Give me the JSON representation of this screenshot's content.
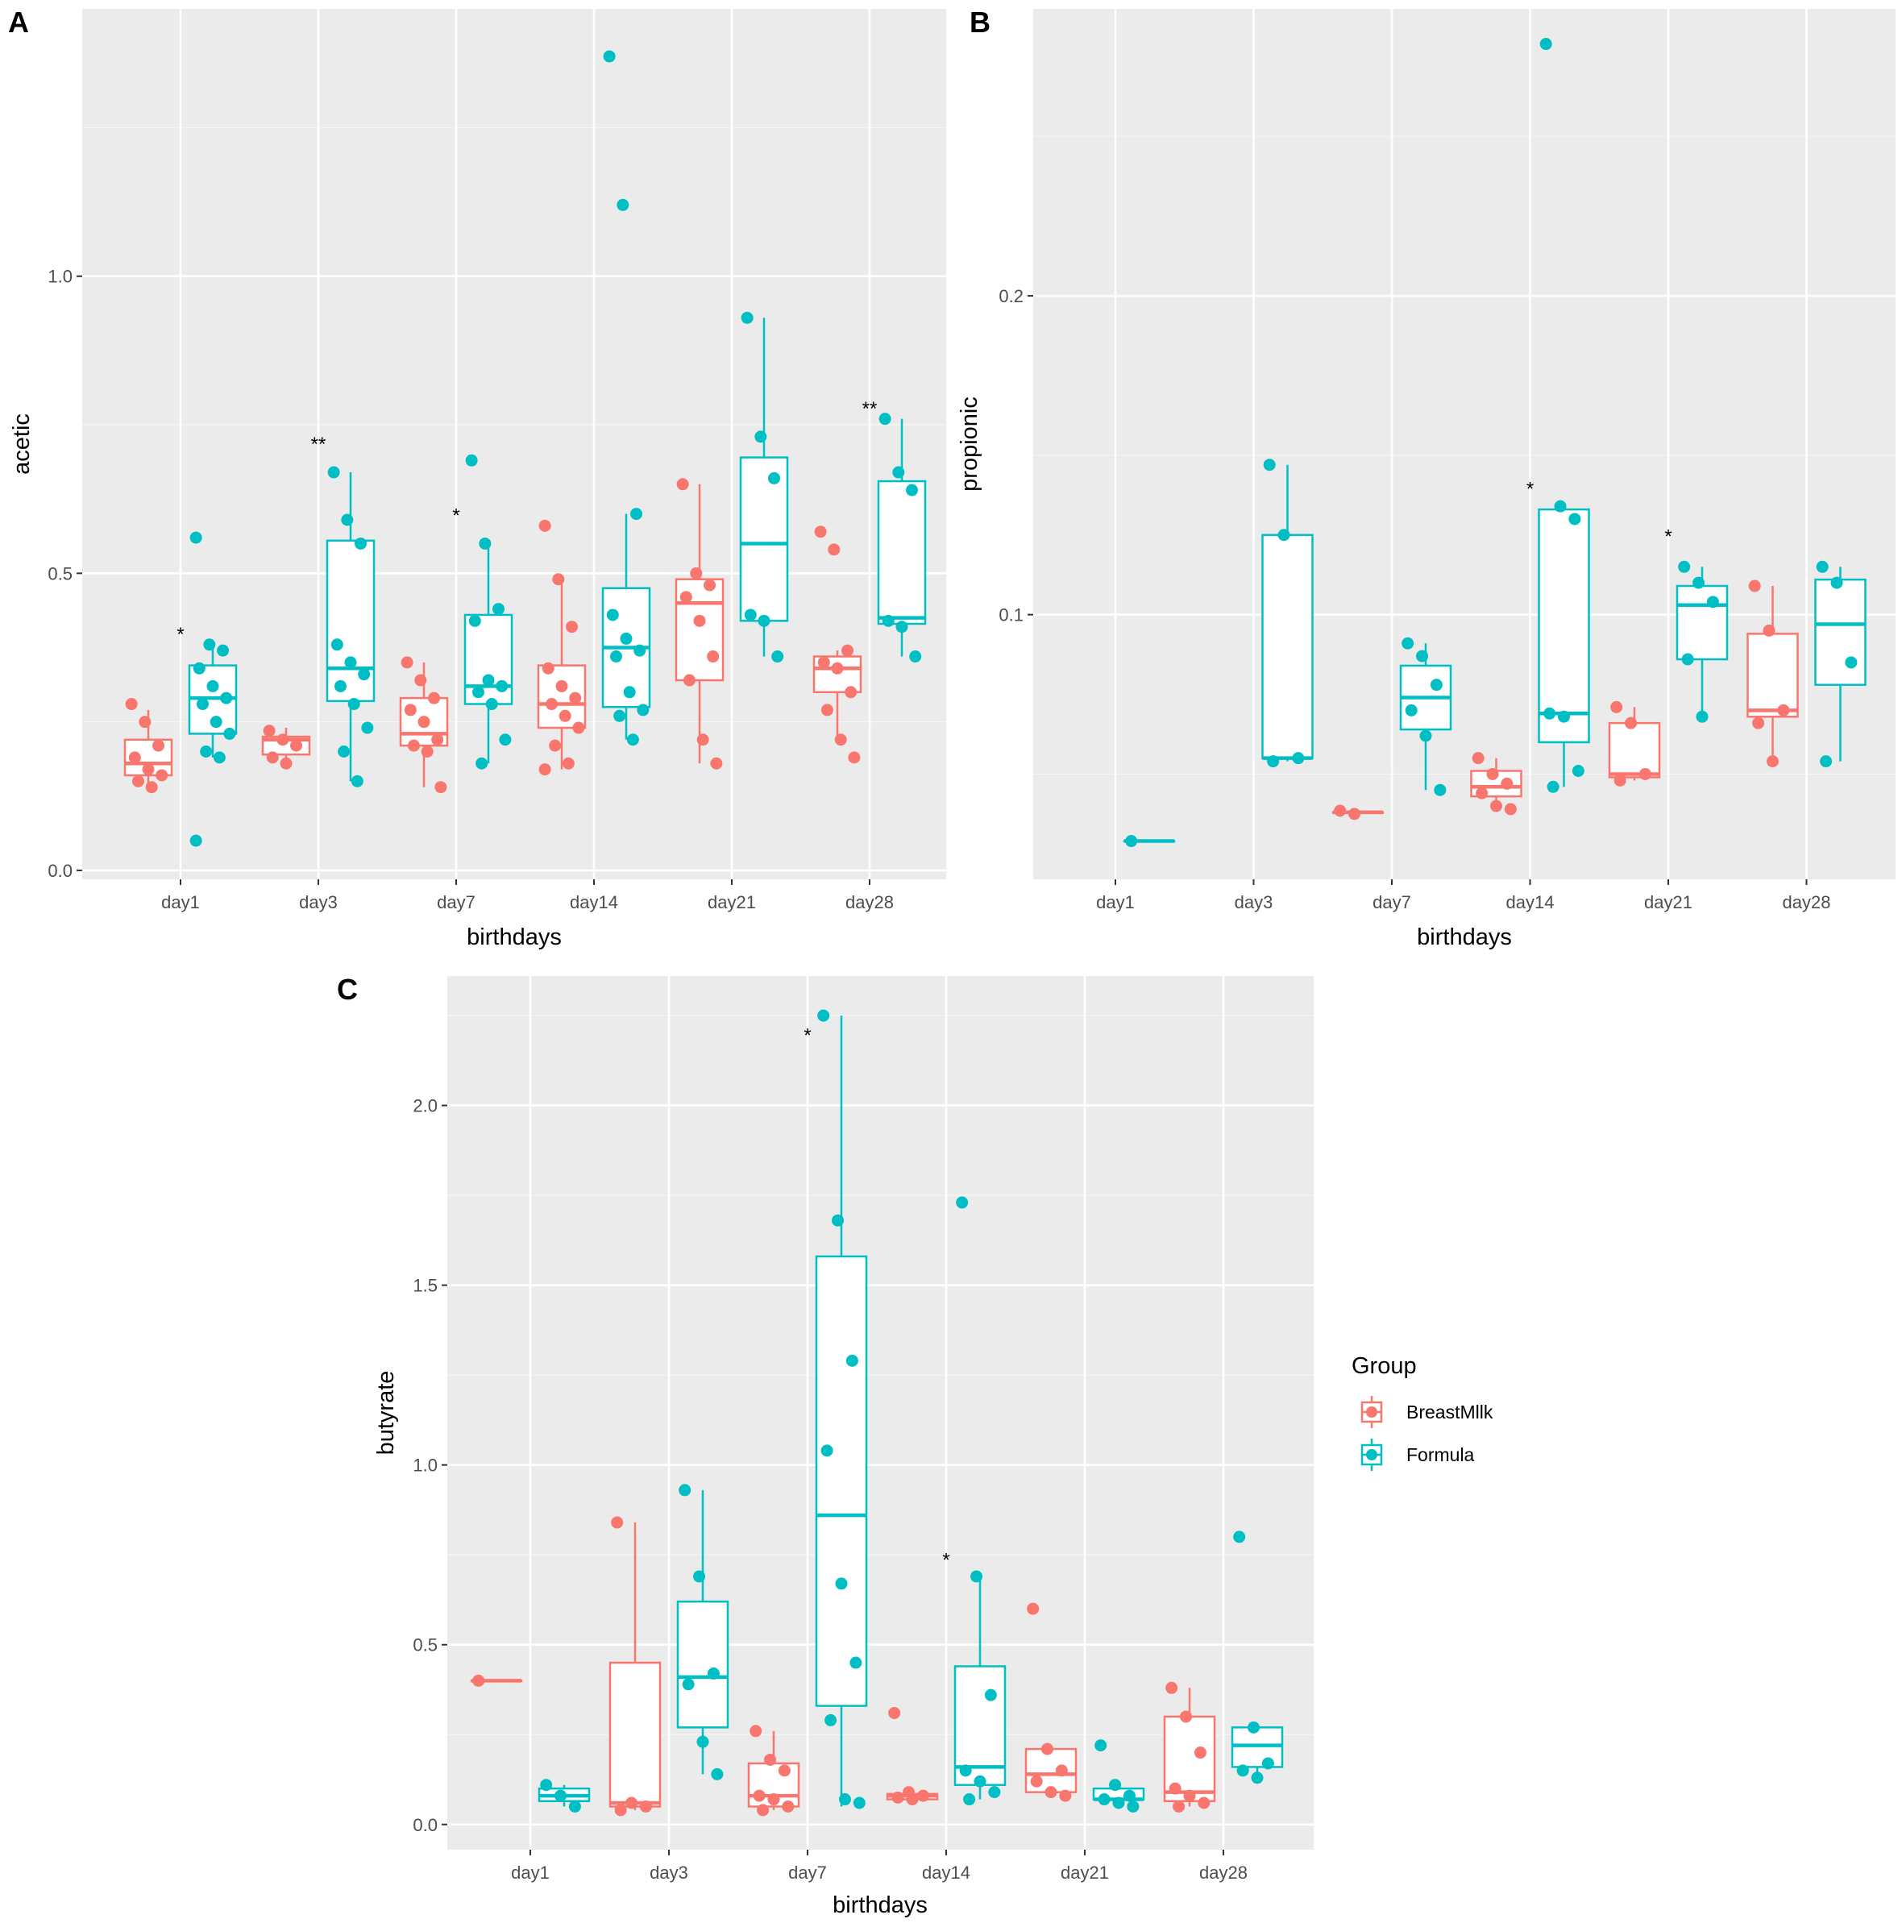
{
  "colors": {
    "BreastMilk": "#F8766D",
    "Formula": "#00BFC4"
  },
  "legend": {
    "title": "Group",
    "items": [
      {
        "label": "BreastMllk",
        "group": "BreastMilk"
      },
      {
        "label": "Formula",
        "group": "Formula"
      }
    ]
  },
  "chart_data": [
    {
      "panel": "A",
      "type": "box",
      "xlabel": "birthdays",
      "ylabel": "acetic",
      "categories": [
        "day1",
        "day3",
        "day7",
        "day14",
        "day21",
        "day28"
      ],
      "ylim": [
        -0.015,
        1.45
      ],
      "yticks": [
        0.0,
        0.5,
        1.0
      ],
      "ytick_labels": [
        "0.0",
        "0.5",
        "1.0"
      ],
      "series": [
        {
          "group": "BreastMilk",
          "boxes": [
            {
              "cat": "day1",
              "lo": 0.14,
              "q1": 0.16,
              "med": 0.18,
              "q3": 0.22,
              "hi": 0.27,
              "points": [
                0.28,
                0.25,
                0.21,
                0.19,
                0.17,
                0.16,
                0.15,
                0.14
              ]
            },
            {
              "cat": "day3",
              "lo": 0.18,
              "q1": 0.195,
              "med": 0.22,
              "q3": 0.225,
              "hi": 0.24,
              "points": [
                0.235,
                0.22,
                0.21,
                0.19,
                0.18
              ]
            },
            {
              "cat": "day7",
              "lo": 0.14,
              "q1": 0.21,
              "med": 0.23,
              "q3": 0.29,
              "hi": 0.35,
              "points": [
                0.35,
                0.32,
                0.29,
                0.27,
                0.25,
                0.22,
                0.21,
                0.2,
                0.14
              ]
            },
            {
              "cat": "day14",
              "lo": 0.17,
              "q1": 0.24,
              "med": 0.28,
              "q3": 0.345,
              "hi": 0.49,
              "points": [
                0.58,
                0.49,
                0.41,
                0.34,
                0.31,
                0.29,
                0.28,
                0.26,
                0.24,
                0.21,
                0.18,
                0.17
              ]
            },
            {
              "cat": "day21",
              "lo": 0.18,
              "q1": 0.32,
              "med": 0.45,
              "q3": 0.49,
              "hi": 0.65,
              "points": [
                0.65,
                0.5,
                0.48,
                0.46,
                0.42,
                0.36,
                0.32,
                0.22,
                0.18
              ]
            },
            {
              "cat": "day28",
              "lo": 0.22,
              "q1": 0.3,
              "med": 0.34,
              "q3": 0.36,
              "hi": 0.37,
              "points": [
                0.57,
                0.54,
                0.37,
                0.35,
                0.34,
                0.3,
                0.27,
                0.22,
                0.19
              ]
            }
          ]
        },
        {
          "group": "Formula",
          "boxes": [
            {
              "cat": "day1",
              "lo": 0.19,
              "q1": 0.23,
              "med": 0.29,
              "q3": 0.345,
              "hi": 0.38,
              "points": [
                0.56,
                0.38,
                0.37,
                0.34,
                0.31,
                0.29,
                0.28,
                0.25,
                0.23,
                0.2,
                0.19,
                0.05
              ]
            },
            {
              "cat": "day3",
              "lo": 0.15,
              "q1": 0.285,
              "med": 0.34,
              "q3": 0.555,
              "hi": 0.67,
              "points": [
                0.67,
                0.59,
                0.55,
                0.38,
                0.35,
                0.33,
                0.31,
                0.28,
                0.24,
                0.2,
                0.15
              ]
            },
            {
              "cat": "day7",
              "lo": 0.18,
              "q1": 0.28,
              "med": 0.31,
              "q3": 0.43,
              "hi": 0.55,
              "points": [
                0.69,
                0.55,
                0.44,
                0.42,
                0.32,
                0.31,
                0.3,
                0.28,
                0.22,
                0.18
              ]
            },
            {
              "cat": "day14",
              "lo": 0.22,
              "q1": 0.275,
              "med": 0.375,
              "q3": 0.475,
              "hi": 0.6,
              "points": [
                1.37,
                1.12,
                0.6,
                0.43,
                0.39,
                0.37,
                0.36,
                0.3,
                0.27,
                0.26,
                0.22
              ]
            },
            {
              "cat": "day21",
              "lo": 0.36,
              "q1": 0.42,
              "med": 0.55,
              "q3": 0.695,
              "hi": 0.93,
              "points": [
                0.93,
                0.73,
                0.66,
                0.43,
                0.42,
                0.36
              ]
            },
            {
              "cat": "day28",
              "lo": 0.36,
              "q1": 0.415,
              "med": 0.425,
              "q3": 0.655,
              "hi": 0.76,
              "points": [
                0.76,
                0.67,
                0.64,
                0.42,
                0.41,
                0.36
              ]
            }
          ]
        }
      ],
      "annotations": [
        {
          "cat": "day1",
          "text": "*",
          "y": 0.4
        },
        {
          "cat": "day3",
          "text": "**",
          "y": 0.72
        },
        {
          "cat": "day7",
          "text": "*",
          "y": 0.6
        },
        {
          "cat": "day28",
          "text": "**",
          "y": 0.78
        }
      ]
    },
    {
      "panel": "B",
      "type": "box",
      "xlabel": "birthdays",
      "ylabel": "propionic",
      "categories": [
        "day1",
        "day3",
        "day7",
        "day14",
        "day21",
        "day28"
      ],
      "ylim": [
        0.017,
        0.29
      ],
      "yticks": [
        0.1,
        0.2
      ],
      "ytick_labels": [
        "0.1",
        "0.2"
      ],
      "series": [
        {
          "group": "BreastMilk",
          "boxes": [
            {
              "cat": "day7",
              "lo": 0.038,
              "q1": 0.038,
              "med": 0.038,
              "q3": 0.038,
              "hi": 0.038,
              "points": [
                0.0385,
                0.0375
              ]
            },
            {
              "cat": "day14",
              "lo": 0.039,
              "q1": 0.043,
              "med": 0.046,
              "q3": 0.051,
              "hi": 0.055,
              "points": [
                0.055,
                0.05,
                0.047,
                0.044,
                0.04,
                0.039
              ]
            },
            {
              "cat": "day21",
              "lo": 0.048,
              "q1": 0.049,
              "med": 0.05,
              "q3": 0.066,
              "hi": 0.071,
              "points": [
                0.071,
                0.066,
                0.05,
                0.048
              ]
            },
            {
              "cat": "day28",
              "lo": 0.054,
              "q1": 0.068,
              "med": 0.07,
              "q3": 0.094,
              "hi": 0.109,
              "points": [
                0.109,
                0.095,
                0.07,
                0.066,
                0.054
              ]
            }
          ]
        },
        {
          "group": "Formula",
          "boxes": [
            {
              "cat": "day1",
              "lo": 0.029,
              "q1": 0.029,
              "med": 0.029,
              "q3": 0.029,
              "hi": 0.029,
              "points": [
                0.029
              ]
            },
            {
              "cat": "day3",
              "lo": 0.054,
              "q1": 0.055,
              "med": 0.055,
              "q3": 0.125,
              "hi": 0.147,
              "points": [
                0.147,
                0.125,
                0.055,
                0.054
              ]
            },
            {
              "cat": "day7",
              "lo": 0.045,
              "q1": 0.064,
              "med": 0.074,
              "q3": 0.084,
              "hi": 0.091,
              "points": [
                0.091,
                0.087,
                0.078,
                0.07,
                0.062,
                0.045
              ]
            },
            {
              "cat": "day14",
              "lo": 0.046,
              "q1": 0.06,
              "med": 0.069,
              "q3": 0.133,
              "hi": 0.134,
              "points": [
                0.279,
                0.134,
                0.13,
                0.069,
                0.068,
                0.051,
                0.046
              ]
            },
            {
              "cat": "day21",
              "lo": 0.068,
              "q1": 0.086,
              "med": 0.103,
              "q3": 0.109,
              "hi": 0.115,
              "points": [
                0.115,
                0.11,
                0.104,
                0.086,
                0.068
              ]
            },
            {
              "cat": "day28",
              "lo": 0.054,
              "q1": 0.078,
              "med": 0.097,
              "q3": 0.111,
              "hi": 0.115,
              "points": [
                0.115,
                0.11,
                0.085,
                0.054
              ]
            }
          ]
        }
      ],
      "annotations": [
        {
          "cat": "day14",
          "text": "*",
          "y": 0.14
        },
        {
          "cat": "day21",
          "text": "*",
          "y": 0.125
        }
      ]
    },
    {
      "panel": "C",
      "type": "box",
      "xlabel": "birthdays",
      "ylabel": "butyrate",
      "categories": [
        "day1",
        "day3",
        "day7",
        "day14",
        "day21",
        "day28"
      ],
      "ylim": [
        -0.07,
        2.36
      ],
      "yticks": [
        0.0,
        0.5,
        1.0,
        1.5,
        2.0
      ],
      "ytick_labels": [
        "0.0",
        "0.5",
        "1.0",
        "1.5",
        "2.0"
      ],
      "series": [
        {
          "group": "BreastMilk",
          "boxes": [
            {
              "cat": "day1",
              "lo": 0.4,
              "q1": 0.4,
              "med": 0.4,
              "q3": 0.4,
              "hi": 0.4,
              "points": [
                0.4
              ]
            },
            {
              "cat": "day3",
              "lo": 0.04,
              "q1": 0.05,
              "med": 0.06,
              "q3": 0.45,
              "hi": 0.84,
              "points": [
                0.84,
                0.06,
                0.05,
                0.04
              ]
            },
            {
              "cat": "day7",
              "lo": 0.04,
              "q1": 0.05,
              "med": 0.08,
              "q3": 0.17,
              "hi": 0.26,
              "points": [
                0.26,
                0.18,
                0.15,
                0.08,
                0.07,
                0.05,
                0.04
              ]
            },
            {
              "cat": "day14",
              "lo": 0.07,
              "q1": 0.07,
              "med": 0.08,
              "q3": 0.085,
              "hi": 0.09,
              "points": [
                0.31,
                0.09,
                0.08,
                0.075,
                0.07
              ]
            },
            {
              "cat": "day21",
              "lo": 0.08,
              "q1": 0.09,
              "med": 0.14,
              "q3": 0.21,
              "hi": 0.21,
              "points": [
                0.6,
                0.21,
                0.15,
                0.12,
                0.09,
                0.08
              ]
            },
            {
              "cat": "day28",
              "lo": 0.05,
              "q1": 0.065,
              "med": 0.09,
              "q3": 0.3,
              "hi": 0.38,
              "points": [
                0.38,
                0.3,
                0.2,
                0.1,
                0.08,
                0.06,
                0.05
              ]
            }
          ]
        },
        {
          "group": "Formula",
          "boxes": [
            {
              "cat": "day1",
              "lo": 0.05,
              "q1": 0.065,
              "med": 0.08,
              "q3": 0.1,
              "hi": 0.11,
              "points": [
                0.11,
                0.08,
                0.05
              ]
            },
            {
              "cat": "day3",
              "lo": 0.14,
              "q1": 0.27,
              "med": 0.41,
              "q3": 0.62,
              "hi": 0.93,
              "points": [
                0.93,
                0.69,
                0.42,
                0.39,
                0.23,
                0.14
              ]
            },
            {
              "cat": "day7",
              "lo": 0.05,
              "q1": 0.33,
              "med": 0.86,
              "q3": 1.58,
              "hi": 2.25,
              "points": [
                2.25,
                1.68,
                1.29,
                1.04,
                0.67,
                0.45,
                0.29,
                0.07,
                0.06
              ]
            },
            {
              "cat": "day14",
              "lo": 0.07,
              "q1": 0.11,
              "med": 0.16,
              "q3": 0.44,
              "hi": 0.69,
              "points": [
                1.73,
                0.69,
                0.36,
                0.15,
                0.12,
                0.09,
                0.07
              ]
            },
            {
              "cat": "day21",
              "lo": 0.05,
              "q1": 0.07,
              "med": 0.07,
              "q3": 0.1,
              "hi": 0.11,
              "points": [
                0.22,
                0.11,
                0.08,
                0.07,
                0.06,
                0.05
              ]
            },
            {
              "cat": "day28",
              "lo": 0.12,
              "q1": 0.16,
              "med": 0.22,
              "q3": 0.27,
              "hi": 0.27,
              "points": [
                0.8,
                0.27,
                0.17,
                0.15,
                0.13
              ]
            }
          ]
        }
      ],
      "annotations": [
        {
          "cat": "day7",
          "text": "*",
          "y": 2.2
        },
        {
          "cat": "day14",
          "text": "*",
          "y": 0.74
        }
      ]
    }
  ]
}
